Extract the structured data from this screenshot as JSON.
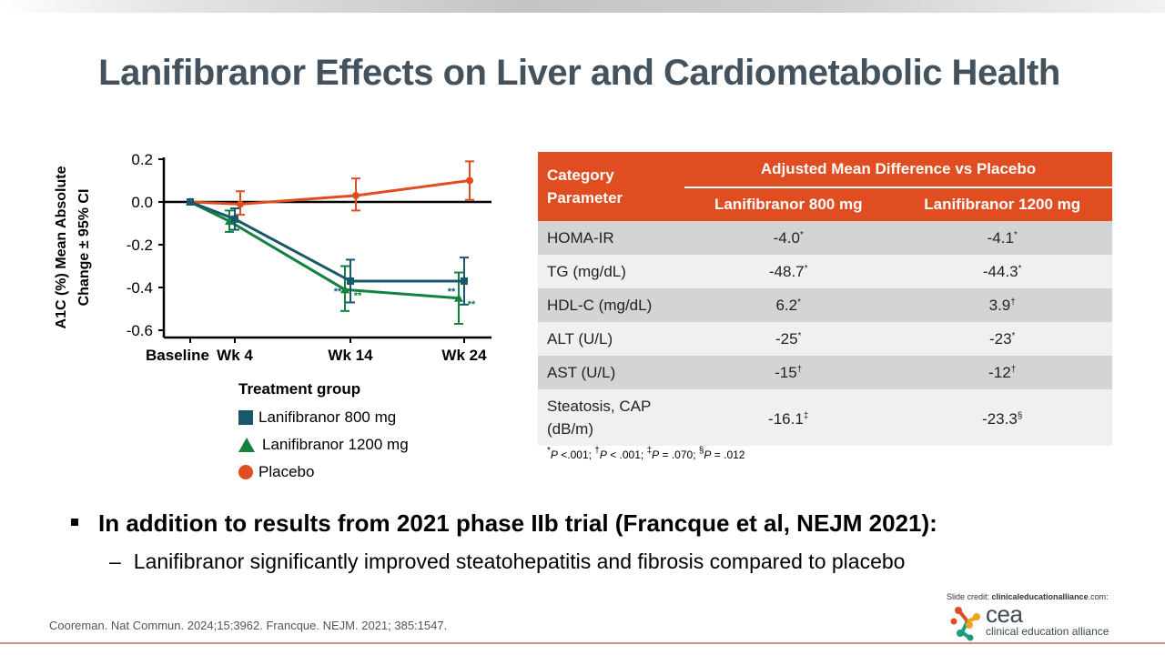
{
  "slide": {
    "title": "Lanifibranor Effects on Liver and Cardiometabolic Health",
    "bullet_main": "In addition to results from 2021 phase IIb trial (Francque et al, NEJM 2021):",
    "bullet_sub_dash": "–",
    "bullet_sub": "Lanifibranor significantly improved steatohepatitis and fibrosis compared to placebo",
    "citation": "Cooreman. Nat Commun. 2024;15:3962. Francque. NEJM. 2021; 385:1547.",
    "credit_prefix": "Slide credit: ",
    "credit_site": "clinicaleducationalliance",
    "credit_suffix": ".com:",
    "logo_short": "cea",
    "logo_full": "clinical education alliance",
    "logo_icon": "cea-molecule-icon"
  },
  "colors": {
    "accent_orange": "#e04d21",
    "title_gray": "#44525d",
    "lani800": "#17586b",
    "lani1200": "#13823f",
    "placebo": "#e04d21"
  },
  "chart_data": {
    "type": "line",
    "title": "",
    "xlabel": "",
    "ylabel": "A1C (%) Mean Absolute Change ± 95% CI",
    "ylabel_line1": "A1C (%) Mean Absolute",
    "ylabel_line2": "Change ± 95% CI",
    "categories": [
      "Baseline",
      "Wk 4",
      "Wk 14",
      "Wk 24"
    ],
    "x": [
      0,
      4,
      14,
      24
    ],
    "ylim": [
      -0.6,
      0.2
    ],
    "yticks": [
      0.2,
      0.0,
      -0.2,
      -0.4,
      -0.6
    ],
    "ytick_labels": [
      "0.2",
      "0.0",
      "-0.2",
      "-0.4",
      "-0.6"
    ],
    "grid": false,
    "series": [
      {
        "name": "Lanifibranor 800 mg",
        "marker": "square",
        "color": "#17586b",
        "values": [
          0.0,
          -0.08,
          -0.37,
          -0.37
        ],
        "ci_low": [
          0.0,
          -0.13,
          -0.47,
          -0.48
        ],
        "ci_high": [
          0.0,
          -0.03,
          -0.27,
          -0.26
        ],
        "annotations": [
          "",
          "",
          "**",
          "**"
        ]
      },
      {
        "name": "Lanifibranor 1200 mg",
        "marker": "triangle",
        "color": "#13823f",
        "values": [
          0.0,
          -0.09,
          -0.41,
          -0.45
        ],
        "ci_low": [
          0.0,
          -0.14,
          -0.51,
          -0.57
        ],
        "ci_high": [
          0.0,
          -0.04,
          -0.3,
          -0.33
        ],
        "annotations": [
          "",
          "",
          "**",
          "**"
        ]
      },
      {
        "name": "Placebo",
        "marker": "circle",
        "color": "#e04d21",
        "values": [
          0.0,
          -0.01,
          0.03,
          0.1
        ],
        "ci_low": [
          0.0,
          -0.06,
          -0.04,
          0.01
        ],
        "ci_high": [
          0.0,
          0.05,
          0.11,
          0.19
        ],
        "annotations": [
          "",
          "",
          "",
          ""
        ]
      }
    ],
    "legend_title": "Treatment group",
    "legend_position": "bottom"
  },
  "table": {
    "header_category": "Category",
    "header_parameter": "Parameter",
    "header_span": "Adjusted Mean Difference vs Placebo",
    "col1": "Lanifibranor 800 mg",
    "col2": "Lanifibranor 1200 mg",
    "rows": [
      {
        "param": "HOMA-IR",
        "v800": "-4.0",
        "s800": "*",
        "v1200": "-4.1",
        "s1200": "*"
      },
      {
        "param": "TG (mg/dL)",
        "v800": "-48.7",
        "s800": "*",
        "v1200": "-44.3",
        "s1200": "*"
      },
      {
        "param": "HDL-C (mg/dL)",
        "v800": "6.2",
        "s800": "*",
        "v1200": "3.9",
        "s1200": "†"
      },
      {
        "param": "ALT (U/L)",
        "v800": "-25",
        "s800": "*",
        "v1200": "-23",
        "s1200": "*"
      },
      {
        "param": "AST (U/L)",
        "v800": "-15",
        "s800": "†",
        "v1200": "-12",
        "s1200": "†"
      },
      {
        "param": "Steatosis, CAP (dB/m)",
        "v800": "-16.1",
        "s800": "‡",
        "v1200": "-23.3",
        "s1200": "§"
      }
    ],
    "footnote": [
      {
        "sym": "*",
        "p": "P",
        "txt": " <.001; "
      },
      {
        "sym": "†",
        "p": "P",
        "txt": " < .001; "
      },
      {
        "sym": "‡",
        "p": "P",
        "txt": " = .070; "
      },
      {
        "sym": "§",
        "p": "P",
        "txt": " = .012"
      }
    ]
  }
}
